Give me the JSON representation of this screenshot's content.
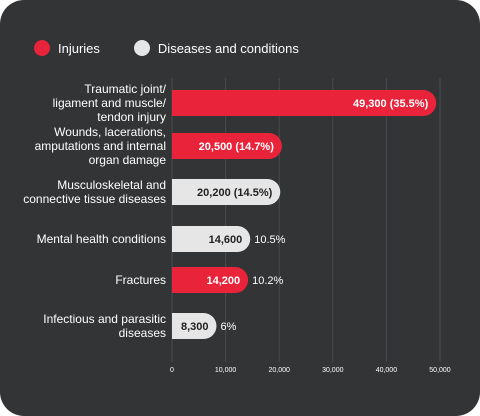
{
  "colors": {
    "injuries": "#e8233a",
    "diseases": "#e6e6e6",
    "background": "#333436"
  },
  "legend": [
    {
      "label": "Injuries",
      "color": "#e8233a"
    },
    {
      "label": "Diseases and conditions",
      "color": "#e6e6e6"
    }
  ],
  "chart_data": {
    "type": "bar",
    "orientation": "horizontal",
    "categories": [
      [
        "Traumatic joint/",
        "ligament and muscle/",
        "tendon injury"
      ],
      [
        "Wounds, lacerations,",
        "amputations and internal",
        "organ damage"
      ],
      [
        "Musculoskeletal and",
        "connective tissue diseases"
      ],
      [
        "Mental health conditions"
      ],
      [
        "Fractures"
      ],
      [
        "Infectious and parasitic",
        "diseases"
      ]
    ],
    "values": [
      49300,
      20500,
      20200,
      14600,
      14200,
      8300
    ],
    "value_labels": [
      "49,300 (35.5%)",
      "20,500 (14.7%)",
      "20,200 (14.5%)",
      "14,600",
      "14,200",
      "8,300"
    ],
    "pct_labels": [
      "",
      "",
      "",
      "10.5%",
      "10.2%",
      "6%"
    ],
    "groups": [
      "Injuries",
      "Injuries",
      "Diseases and conditions",
      "Diseases and conditions",
      "Injuries",
      "Diseases and conditions"
    ],
    "xlim": [
      0,
      50000
    ],
    "xticks": [
      0,
      10000,
      20000,
      30000,
      40000,
      50000
    ],
    "xtick_labels": [
      "0",
      "10,000",
      "20,000",
      "30,000",
      "40,000",
      "50,000"
    ],
    "grid": true,
    "legend_position": "top-left"
  }
}
